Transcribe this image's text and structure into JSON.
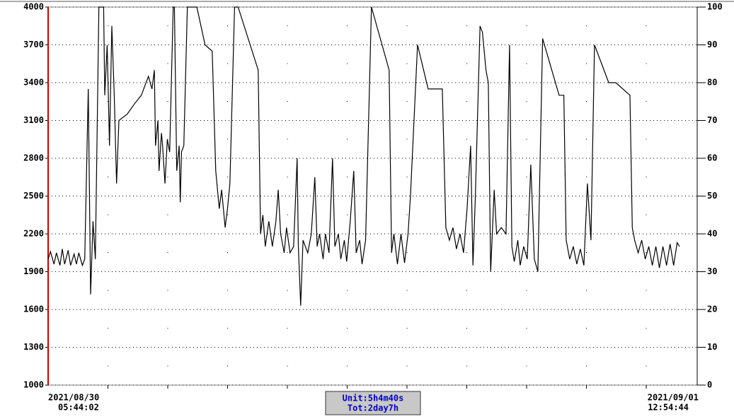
{
  "chart_data": {
    "type": "line",
    "color": "#000000",
    "axis_color": "#cc0000",
    "grid": true,
    "xlim": [
      0,
      55
    ],
    "ylim": [
      1000,
      4000
    ],
    "yticks": [
      1000,
      1300,
      1600,
      1900,
      2200,
      2500,
      2800,
      3100,
      3400,
      3700,
      4000
    ],
    "y2lim": [
      0,
      100
    ],
    "y2ticks": [
      0,
      10,
      20,
      30,
      40,
      50,
      60,
      70,
      80,
      90,
      100
    ],
    "start_label": [
      "2021/08/30",
      "05:44:02"
    ],
    "end_label": [
      "2021/09/01",
      "12:54:44"
    ],
    "unit_label": "Unit:5h4m40s",
    "total_label": "Tot:2day7h",
    "x": [
      0.0,
      0.2,
      0.5,
      0.7,
      1.0,
      1.2,
      1.4,
      1.7,
      1.9,
      2.2,
      2.4,
      2.6,
      2.9,
      3.1,
      3.4,
      3.6,
      3.8,
      4.0,
      4.3,
      4.7,
      4.8,
      5.0,
      5.2,
      5.4,
      5.6,
      5.8,
      6.0,
      6.7,
      7.3,
      7.9,
      8.5,
      8.8,
      9.0,
      9.1,
      9.3,
      9.4,
      9.6,
      9.7,
      9.9,
      10.1,
      10.3,
      10.6,
      10.7,
      10.9,
      11.1,
      11.2,
      11.3,
      11.5,
      11.8,
      12.6,
      13.3,
      13.9,
      14.2,
      14.4,
      14.5,
      14.7,
      15.0,
      15.2,
      15.4,
      15.8,
      16.1,
      17.8,
      18.0,
      18.2,
      18.4,
      18.7,
      19.0,
      19.3,
      19.5,
      19.7,
      20.0,
      20.2,
      20.5,
      20.8,
      21.1,
      21.2,
      21.4,
      21.6,
      22.0,
      22.3,
      22.6,
      22.8,
      23.0,
      23.3,
      23.5,
      23.8,
      24.1,
      24.3,
      24.6,
      24.8,
      25.1,
      25.3,
      25.6,
      25.9,
      26.1,
      26.4,
      26.6,
      26.9,
      27.4,
      28.9,
      29.1,
      29.3,
      29.6,
      29.9,
      30.2,
      30.5,
      30.7,
      31.0,
      31.3,
      32.2,
      33.4,
      33.7,
      34.0,
      34.3,
      34.6,
      34.9,
      35.2,
      35.5,
      35.8,
      36.0,
      36.2,
      36.6,
      36.8,
      37.1,
      37.3,
      37.5,
      37.8,
      38.0,
      38.4,
      38.8,
      39.1,
      39.3,
      39.5,
      39.8,
      40.0,
      40.3,
      40.6,
      40.9,
      41.2,
      41.5,
      41.9,
      43.3,
      43.7,
      43.9,
      44.2,
      44.5,
      44.8,
      45.1,
      45.4,
      45.7,
      46.0,
      46.3,
      47.5,
      48.1,
      49.3,
      49.5,
      49.7,
      50.0,
      50.3,
      50.6,
      50.9,
      51.2,
      51.5,
      51.8,
      52.1,
      52.4,
      52.7,
      53.0,
      53.3,
      53.5
    ],
    "values": [
      2000,
      2060,
      1960,
      2050,
      1950,
      2080,
      1960,
      2070,
      1950,
      2040,
      1960,
      2050,
      1950,
      2000,
      3350,
      1720,
      2300,
      2000,
      4000,
      4000,
      3300,
      3700,
      2900,
      3850,
      3300,
      2600,
      3100,
      3150,
      3230,
      3300,
      3450,
      3350,
      3500,
      2900,
      3100,
      2700,
      3000,
      2900,
      2600,
      2950,
      2850,
      4000,
      4000,
      2700,
      2900,
      2450,
      2850,
      2900,
      4000,
      4000,
      3700,
      3650,
      2700,
      2500,
      2400,
      2550,
      2250,
      2400,
      2600,
      4000,
      4000,
      3500,
      2200,
      2350,
      2100,
      2300,
      2100,
      2300,
      2550,
      2200,
      2050,
      2250,
      2050,
      2100,
      2800,
      2100,
      1630,
      2150,
      2050,
      2200,
      2650,
      2100,
      2200,
      2000,
      2200,
      2050,
      2800,
      2100,
      2200,
      2000,
      2150,
      1980,
      2300,
      2700,
      2050,
      2150,
      1960,
      2150,
      4000,
      3500,
      2050,
      2200,
      1960,
      2200,
      1970,
      2200,
      2500,
      3100,
      3700,
      3350,
      3350,
      2250,
      2150,
      2250,
      2080,
      2200,
      2050,
      2400,
      2900,
      1950,
      2500,
      3850,
      3800,
      3500,
      3400,
      1900,
      2550,
      2200,
      2250,
      2200,
      3700,
      2100,
      1980,
      2150,
      1950,
      2100,
      2000,
      2750,
      2000,
      1900,
      3750,
      3300,
      3300,
      2150,
      2000,
      2100,
      1960,
      2080,
      1950,
      2600,
      2150,
      3700,
      3400,
      3400,
      3300,
      2250,
      2150,
      2050,
      2150,
      2000,
      2100,
      1950,
      2100,
      1930,
      2100,
      1950,
      2120,
      1950,
      2130,
      2100
    ]
  }
}
